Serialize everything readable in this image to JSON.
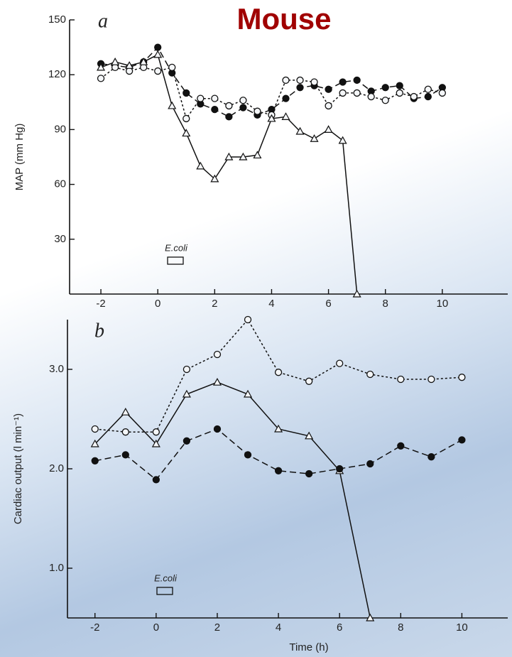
{
  "title": "Mouse",
  "chart_data": [
    {
      "type": "line",
      "title": "a",
      "y_label": "MAP (mm Hg)",
      "annotation": "E.coli",
      "xlim": [
        -3.1,
        12.3
      ],
      "xticks": [
        -2,
        0,
        2,
        4,
        6,
        8,
        10
      ],
      "ylim": [
        0,
        150
      ],
      "yticks": [
        30,
        60,
        90,
        120,
        150
      ],
      "x": [
        -2,
        -1.5,
        -1,
        -0.5,
        0,
        0.5,
        1,
        1.5,
        2,
        2.5,
        3,
        3.5,
        4,
        4.5,
        5,
        5.5,
        6,
        6.5,
        7,
        7.5,
        8,
        8.5,
        9,
        9.5,
        10
      ],
      "series": [
        {
          "color": "#111111",
          "marker": "filled",
          "line_style": "dashed",
          "values": [
            126,
            125,
            124,
            127,
            135,
            121,
            110,
            104,
            101,
            97,
            102,
            98,
            101,
            107,
            113,
            114,
            112,
            116,
            117,
            111,
            113,
            114,
            107,
            108,
            113
          ]
        },
        {
          "color": "#111111",
          "marker": "open",
          "line_style": "dotted",
          "values": [
            118,
            124,
            122,
            124,
            122,
            124,
            96,
            107,
            107,
            103,
            106,
            100,
            98,
            117,
            117,
            116,
            103,
            110,
            110,
            108,
            106,
            110,
            108,
            112,
            110
          ]
        },
        {
          "color": "#111111",
          "marker": "triangle",
          "line_style": "solid",
          "values": [
            124,
            127,
            125,
            127,
            131,
            103,
            88,
            70,
            63,
            75,
            75,
            76,
            96,
            97,
            89,
            85,
            90,
            84,
            0,
            null,
            null,
            null,
            null,
            null,
            null
          ]
        }
      ]
    },
    {
      "type": "line",
      "title": "b",
      "x_label": "Time (h)",
      "y_label": "Cardiac output (l min⁻¹)",
      "annotation": "E.coli",
      "xlim": [
        -2.9,
        11.5
      ],
      "xticks": [
        -2,
        0,
        2,
        4,
        6,
        8,
        10
      ],
      "ylim": [
        0.5,
        3.5
      ],
      "yticks": [
        {
          "value": 1,
          "label": "1.0"
        },
        {
          "value": 2,
          "label": "2.0"
        },
        {
          "value": 3,
          "label": "3.0"
        }
      ],
      "x": [
        -2,
        -1,
        0,
        1,
        2,
        3,
        4,
        5,
        6,
        7,
        8,
        9,
        10
      ],
      "series": [
        {
          "color": "#111111",
          "marker": "open",
          "line_style": "dotted",
          "values": [
            2.4,
            2.37,
            2.37,
            3.0,
            3.15,
            3.5,
            2.97,
            2.88,
            3.06,
            2.95,
            2.9,
            2.9,
            2.92
          ]
        },
        {
          "color": "#111111",
          "marker": "triangle",
          "line_style": "solid",
          "values": [
            2.25,
            2.57,
            2.25,
            2.75,
            2.87,
            2.75,
            2.4,
            2.33,
            1.98,
            0.5,
            null,
            null,
            null
          ]
        },
        {
          "color": "#111111",
          "marker": "filled",
          "line_style": "dashed",
          "values": [
            2.08,
            2.14,
            1.89,
            2.28,
            2.4,
            2.14,
            1.98,
            1.95,
            2.0,
            2.05,
            2.23,
            2.12,
            2.29
          ]
        }
      ]
    }
  ]
}
